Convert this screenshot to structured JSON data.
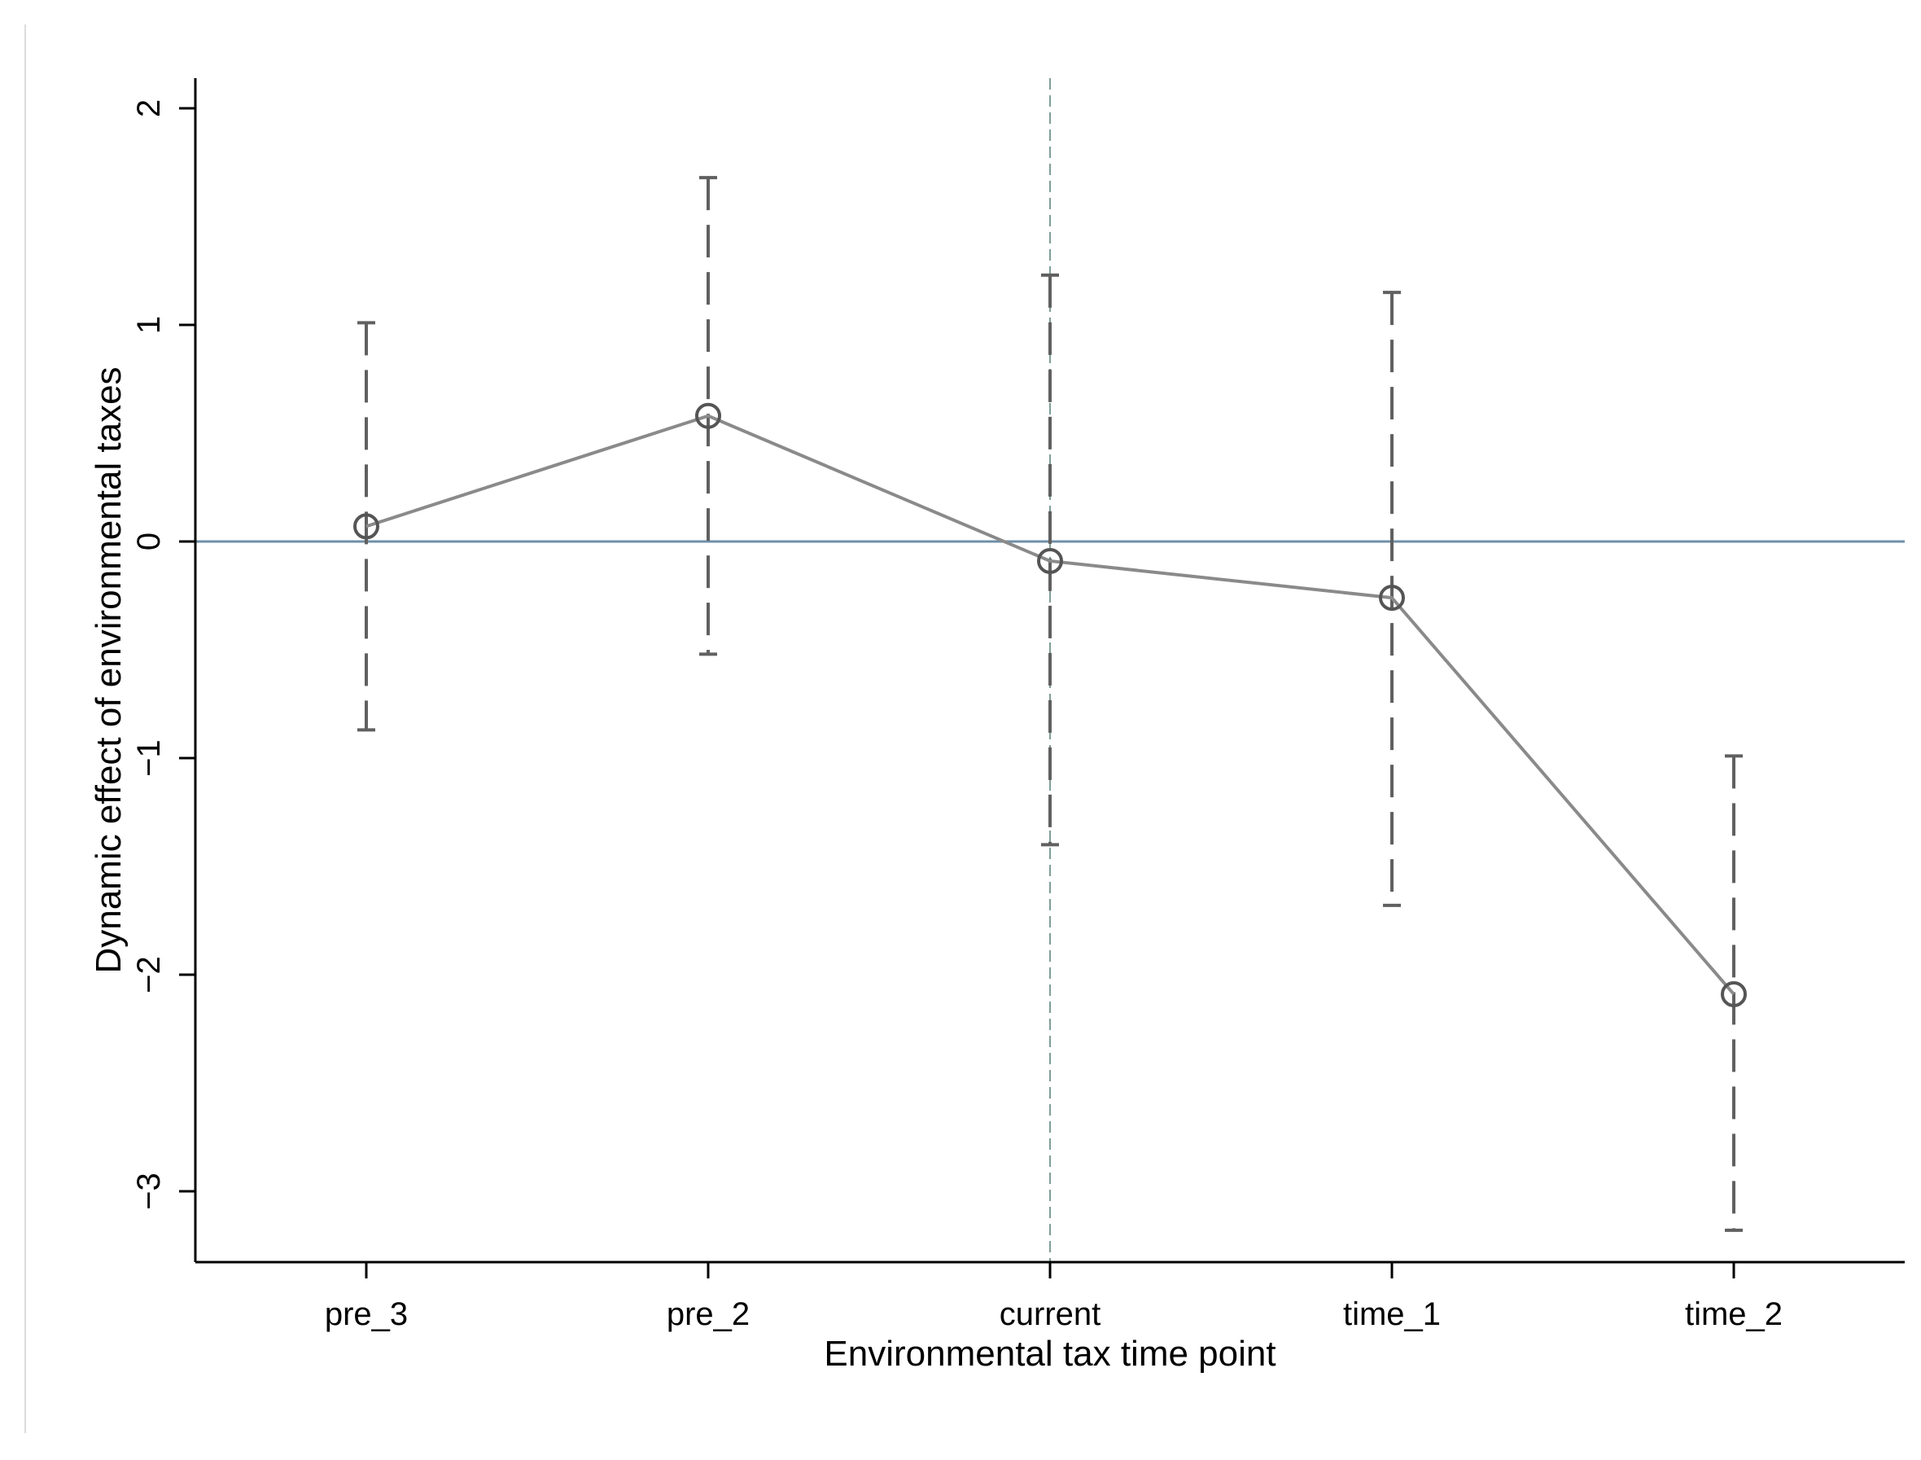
{
  "chart_data": {
    "type": "line",
    "title": "",
    "xlabel": "Environmental tax time point",
    "ylabel": "Dynamic effect of environmental taxes",
    "categories": [
      "pre_3",
      "pre_2",
      "current",
      "time_1",
      "time_2"
    ],
    "y_ticks": [
      "2",
      "1",
      "0",
      "−1",
      "−2",
      "−3"
    ],
    "y_tick_values": [
      2,
      1,
      0,
      -1,
      -2,
      -3
    ],
    "ylim": [
      -3.3,
      2.15
    ],
    "series": [
      {
        "values": [
          0.07,
          0.58,
          -0.09,
          -0.26,
          -2.09
        ],
        "ci_lower": [
          -0.87,
          -0.52,
          -1.4,
          -1.68,
          -3.18
        ],
        "ci_upper": [
          1.01,
          1.68,
          1.23,
          1.15,
          -0.99
        ]
      }
    ],
    "reference_lines": {
      "horizontal_y": 0,
      "vertical_category": "current"
    },
    "grid": false,
    "legend": "none",
    "colors": {
      "series_line": "#8a8a8a",
      "markers": "#555555",
      "ci_bars": "#606060",
      "zero_line": "#6f8fa8",
      "vertical_ref": "#7f9e98",
      "axes": "#000000"
    }
  }
}
